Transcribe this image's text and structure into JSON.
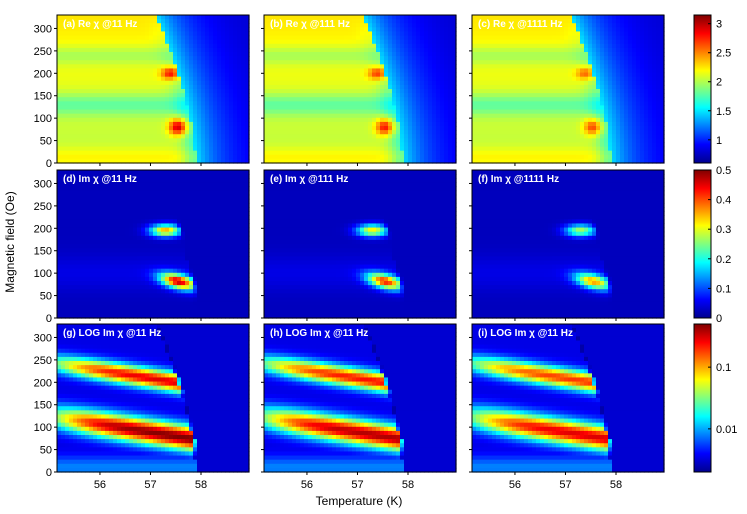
{
  "chart_data": {
    "type": "heatmap",
    "xlabel": "Temperature (K)",
    "ylabel": "Magnetic field (Oe)",
    "x_ticks": [
      "56",
      "57",
      "58"
    ],
    "xlim": [
      55.15,
      58.95
    ],
    "y_ticks": [
      "0",
      "50",
      "100",
      "150",
      "200",
      "250",
      "300"
    ],
    "ylim": [
      0,
      330
    ],
    "colormap": "jet",
    "rows": [
      {
        "quantity": "Re χ",
        "colorbar": {
          "min": 0.6,
          "max": 3.15,
          "ticks": [
            "1",
            "1.5",
            "2",
            "2.5",
            "3"
          ],
          "tick_values": [
            1,
            1.5,
            2,
            2.5,
            3
          ],
          "scale": "linear"
        },
        "panels": [
          {
            "label": "(a) Re χ @11 Hz",
            "frequency_hz": 11,
            "peak_intensity": 1.0
          },
          {
            "label": "(b) Re χ @111 Hz",
            "frequency_hz": 111,
            "peak_intensity": 0.85
          },
          {
            "label": "(c) Re χ @1111 Hz",
            "frequency_hz": 1111,
            "peak_intensity": 0.7
          }
        ]
      },
      {
        "quantity": "Im χ",
        "colorbar": {
          "min": 0,
          "max": 0.5,
          "ticks": [
            "0",
            "0.1",
            "0.2",
            "0.3",
            "0.4",
            "0.5"
          ],
          "tick_values": [
            0,
            0.1,
            0.2,
            0.3,
            0.4,
            0.5
          ],
          "scale": "linear"
        },
        "panels": [
          {
            "label": "(d) Im χ @11 Hz",
            "frequency_hz": 11,
            "peak_intensity": 1.0
          },
          {
            "label": "(e) Im χ @111 Hz",
            "frequency_hz": 111,
            "peak_intensity": 0.9
          },
          {
            "label": "(f) Im χ @1111 Hz",
            "frequency_hz": 1111,
            "peak_intensity": 0.75
          }
        ]
      },
      {
        "quantity": "LOG Im χ",
        "colorbar": {
          "min": 0.002,
          "max": 0.5,
          "ticks": [
            "0.01",
            "0.1"
          ],
          "tick_values": [
            0.01,
            0.1
          ],
          "scale": "log"
        },
        "panels": [
          {
            "label": "(g) LOG Im χ @11 Hz",
            "frequency_hz": 11,
            "peak_intensity": 1.0
          },
          {
            "label": "(h) LOG Im χ @11 Hz",
            "frequency_hz": 11,
            "peak_intensity": 0.95
          },
          {
            "label": "(i) LOG Im χ @11 Hz",
            "frequency_hz": 11,
            "peak_intensity": 0.9
          }
        ]
      }
    ],
    "features": [
      {
        "name": "lower ridge",
        "field_range_oe": [
          40,
          120
        ],
        "temperature_end_k": 57.8
      },
      {
        "name": "upper ridge",
        "field_range_oe": [
          170,
          230
        ],
        "temperature_end_k": 57.6
      },
      {
        "name": "phase boundary",
        "temperature_at_0_oe_k": 57.9,
        "temperature_at_330_oe_k": 57.1
      }
    ]
  }
}
